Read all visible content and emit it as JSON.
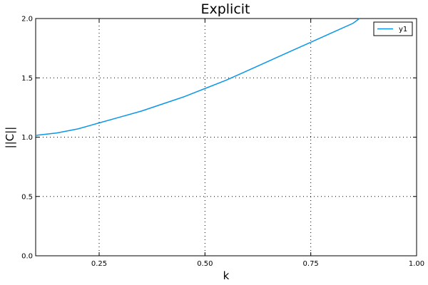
{
  "chart_data": {
    "type": "line",
    "title": "Explicit",
    "xlabel": "k",
    "ylabel": "||C||",
    "xlim": [
      0.1,
      1.0
    ],
    "ylim": [
      0.0,
      2.0
    ],
    "xticks": [
      0.25,
      0.5,
      0.75,
      1.0
    ],
    "xtick_labels": [
      "0.25",
      "0.50",
      "0.75",
      "1.00"
    ],
    "yticks": [
      0.0,
      0.5,
      1.0,
      1.5,
      2.0
    ],
    "ytick_labels": [
      "0.0",
      "0.5",
      "1.0",
      "1.5",
      "2.0"
    ],
    "grid": true,
    "legend_position": "top-right",
    "series": [
      {
        "name": "y1",
        "color": "#0b96e9",
        "x": [
          0.1,
          0.15,
          0.2,
          0.25,
          0.3,
          0.35,
          0.4,
          0.45,
          0.5,
          0.55,
          0.6,
          0.65,
          0.7,
          0.75,
          0.8,
          0.85,
          0.865
        ],
        "y": [
          1.015,
          1.035,
          1.07,
          1.12,
          1.17,
          1.22,
          1.28,
          1.34,
          1.41,
          1.48,
          1.56,
          1.64,
          1.72,
          1.8,
          1.88,
          1.96,
          2.0
        ]
      }
    ]
  }
}
